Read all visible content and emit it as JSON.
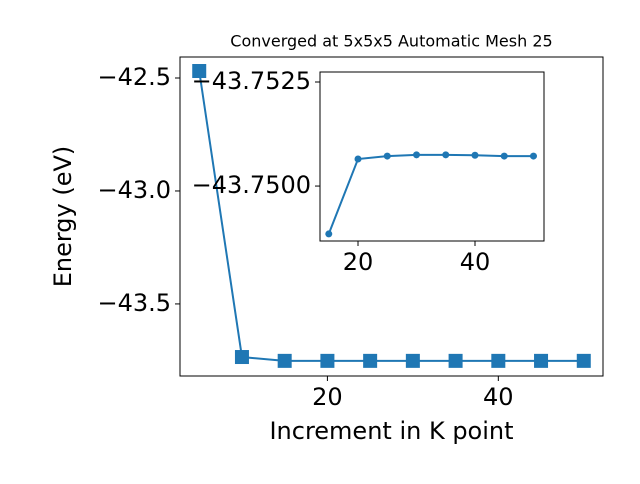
{
  "chart_data": [
    {
      "type": "line",
      "title": "Converged at 5x5x5 Automatic Mesh 25",
      "xlabel": "Increment in K point",
      "ylabel": "Energy (eV)",
      "x": [
        5,
        10,
        15,
        20,
        25,
        30,
        35,
        40,
        45,
        50
      ],
      "series": [
        {
          "color": "#1f77b4",
          "marker": "square",
          "values": [
            -42.469,
            -43.735,
            -43.752,
            -43.752,
            -43.752,
            -43.752,
            -43.752,
            -43.752,
            -43.752,
            -43.752
          ]
        }
      ],
      "xlim": [
        2.75,
        52.25
      ],
      "xticks": [
        20,
        40
      ],
      "ylim": [
        -43.819,
        -42.407
      ],
      "yticks": [
        {
          "value": -42.5,
          "label": "−42.5"
        },
        {
          "value": -43.0,
          "label": "−43.0"
        },
        {
          "value": -43.5,
          "label": "−43.5"
        }
      ]
    },
    {
      "type": "line",
      "x": [
        15,
        20,
        25,
        30,
        35,
        40,
        45,
        50
      ],
      "series": [
        {
          "color": "#1f77b4",
          "marker": "circle",
          "values": [
            -43.74885,
            -43.75065,
            -43.75072,
            -43.75075,
            -43.75075,
            -43.75074,
            -43.75072,
            -43.75072
          ]
        }
      ],
      "xlim": [
        13.5,
        51.8
      ],
      "xticks": [
        20,
        40
      ],
      "ylim": [
        -43.74868,
        -43.75274
      ],
      "yticks": [
        {
          "value": -43.7525,
          "label": "−43.7525"
        },
        {
          "value": -43.75,
          "label": "−43.7500"
        }
      ]
    }
  ]
}
